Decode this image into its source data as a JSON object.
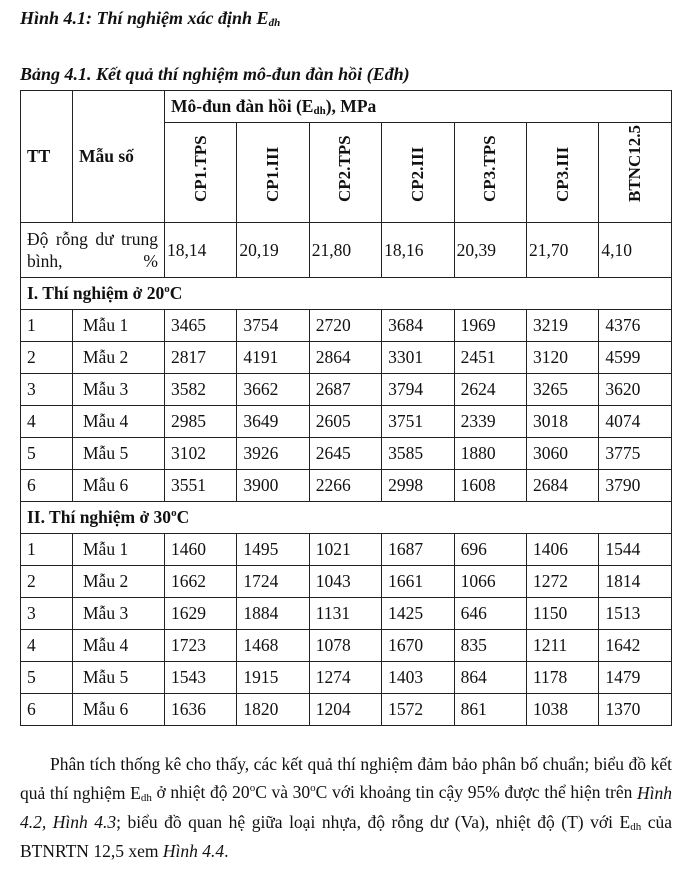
{
  "figure_caption": {
    "prefix": "Hình 4.1: Thí nghiệm xác định E",
    "sub": "đh"
  },
  "table_caption": "Bảng 4.1. Kết quả thí nghiệm mô-đun đàn hồi (Eđh)",
  "table": {
    "col_tt": "TT",
    "col_sample": "Mẫu số",
    "group_header": {
      "prefix": "Mô-đun đàn hồi (E",
      "sub": "dh",
      "suffix": "), MPa"
    },
    "columns": [
      "CP1.TPS",
      "CP1.III",
      "CP2.TPS",
      "CP2.III",
      "CP3.TPS",
      "CP3.III",
      "BTNC12.5"
    ],
    "void_label": "Độ rỗng dư trung bình, %",
    "void_values": [
      "18,14",
      "20,19",
      "21,80",
      "18,16",
      "20,39",
      "21,70",
      "4,10"
    ],
    "sections": [
      {
        "title": "I. Thí nghiệm ở 20oC",
        "rows": [
          {
            "tt": "1",
            "sample": "Mẫu 1",
            "values": [
              "3465",
              "3754",
              "2720",
              "3684",
              "1969",
              "3219",
              "4376"
            ]
          },
          {
            "tt": "2",
            "sample": "Mẫu 2",
            "values": [
              "2817",
              "4191",
              "2864",
              "3301",
              "2451",
              "3120",
              "4599"
            ]
          },
          {
            "tt": "3",
            "sample": "Mẫu 3",
            "values": [
              "3582",
              "3662",
              "2687",
              "3794",
              "2624",
              "3265",
              "3620"
            ]
          },
          {
            "tt": "4",
            "sample": "Mẫu 4",
            "values": [
              "2985",
              "3649",
              "2605",
              "3751",
              "2339",
              "3018",
              "4074"
            ]
          },
          {
            "tt": "5",
            "sample": "Mẫu 5",
            "values": [
              "3102",
              "3926",
              "2645",
              "3585",
              "1880",
              "3060",
              "3775"
            ]
          },
          {
            "tt": "6",
            "sample": "Mẫu 6",
            "values": [
              "3551",
              "3900",
              "2266",
              "2998",
              "1608",
              "2684",
              "3790"
            ]
          }
        ]
      },
      {
        "title": "II. Thí nghiệm ở 30oC",
        "rows": [
          {
            "tt": "1",
            "sample": "Mẫu 1",
            "values": [
              "1460",
              "1495",
              "1021",
              "1687",
              "696",
              "1406",
              "1544"
            ]
          },
          {
            "tt": "2",
            "sample": "Mẫu 2",
            "values": [
              "1662",
              "1724",
              "1043",
              "1661",
              "1066",
              "1272",
              "1814"
            ]
          },
          {
            "tt": "3",
            "sample": "Mẫu 3",
            "values": [
              "1629",
              "1884",
              "1131",
              "1425",
              "646",
              "1150",
              "1513"
            ]
          },
          {
            "tt": "4",
            "sample": "Mẫu 4",
            "values": [
              "1723",
              "1468",
              "1078",
              "1670",
              "835",
              "1211",
              "1642"
            ]
          },
          {
            "tt": "5",
            "sample": "Mẫu 5",
            "values": [
              "1543",
              "1915",
              "1274",
              "1403",
              "864",
              "1178",
              "1479"
            ]
          },
          {
            "tt": "6",
            "sample": "Mẫu 6",
            "values": [
              "1636",
              "1820",
              "1204",
              "1572",
              "861",
              "1038",
              "1370"
            ]
          }
        ]
      }
    ]
  },
  "paragraph": {
    "t1": "Phân tích thống kê cho thấy, các kết quả thí nghiệm đảm bảo phân bố chuẩn; biểu đồ kết quả thí nghiệm E",
    "sub1": "dh",
    "t2": " ở nhiệt độ 20oC và 30oC với khoảng tin cậy 95% được thể hiện trên ",
    "ref1": "Hình 4.2, Hình 4.3",
    "t3": "; biểu đồ quan hệ giữa loại nhựa, độ rỗng dư (Va), nhiệt độ (T) với E",
    "sub2": "dh",
    "t4": " của BTNRTN 12,5 xem ",
    "ref2": "Hình 4.4",
    "t5": "."
  }
}
